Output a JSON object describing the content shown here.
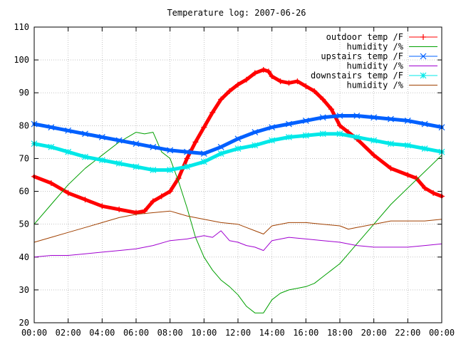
{
  "chart_data": {
    "type": "line",
    "title": "Temperature log: 2007-06-26",
    "xlabel": "",
    "ylabel": "",
    "xlim": [
      0,
      24
    ],
    "ylim": [
      20,
      110
    ],
    "x_ticks": [
      {
        "v": 0,
        "label": "00:00"
      },
      {
        "v": 2,
        "label": "02:00"
      },
      {
        "v": 4,
        "label": "04:00"
      },
      {
        "v": 6,
        "label": "06:00"
      },
      {
        "v": 8,
        "label": "08:00"
      },
      {
        "v": 10,
        "label": "10:00"
      },
      {
        "v": 12,
        "label": "12:00"
      },
      {
        "v": 14,
        "label": "14:00"
      },
      {
        "v": 16,
        "label": "16:00"
      },
      {
        "v": 18,
        "label": "18:00"
      },
      {
        "v": 20,
        "label": "20:00"
      },
      {
        "v": 22,
        "label": "22:00"
      },
      {
        "v": 24,
        "label": "00:00"
      }
    ],
    "y_ticks": [
      20,
      30,
      40,
      50,
      60,
      70,
      80,
      90,
      100,
      110
    ],
    "grid": true,
    "legend_position": "top-right",
    "series": [
      {
        "name": "outdoor temp /F",
        "color": "#ff0000",
        "marker": "plus",
        "thick": true,
        "x": [
          0,
          1,
          2,
          3,
          4,
          5,
          6,
          6.5,
          7,
          7.5,
          8,
          8.5,
          9,
          9.5,
          10,
          10.5,
          11,
          11.5,
          12,
          12.5,
          13,
          13.5,
          13.8,
          14,
          14.5,
          15,
          15.5,
          16,
          16.5,
          17,
          17.5,
          18,
          18.5,
          19,
          20,
          21,
          22,
          22.5,
          23,
          23.5,
          24
        ],
        "values": [
          64.5,
          62.5,
          59.5,
          57.5,
          55.5,
          54.5,
          53.5,
          54,
          57,
          58.5,
          60,
          64,
          70,
          75,
          79.5,
          84,
          88,
          90.5,
          92.5,
          94,
          96,
          97,
          96.5,
          95,
          93.5,
          93,
          93.5,
          92,
          90.5,
          88,
          85,
          80,
          78,
          76,
          71,
          67,
          65,
          64,
          61,
          59.5,
          58.5
        ]
      },
      {
        "name": "humidity /%",
        "color": "#00a000",
        "marker": "none",
        "thick": false,
        "x": [
          0,
          1,
          2,
          3,
          4,
          5,
          6,
          6.5,
          7,
          7.5,
          8,
          8.5,
          9,
          9.5,
          10,
          10.5,
          11,
          11.5,
          12,
          12.5,
          13,
          13.5,
          14,
          14.5,
          15,
          15.5,
          16,
          16.5,
          17,
          17.5,
          18,
          18.5,
          19,
          20,
          21,
          22,
          23,
          24
        ],
        "values": [
          50,
          56,
          62,
          67,
          71,
          75,
          78,
          77.5,
          78,
          72,
          70,
          63,
          55,
          46,
          40,
          36,
          33,
          31,
          28.5,
          25,
          23,
          23,
          27,
          29,
          30,
          30.5,
          31,
          32,
          34,
          36,
          38,
          41,
          44,
          50,
          56,
          61,
          66,
          71
        ]
      },
      {
        "name": "upstairs temp /F",
        "color": "#0060ff",
        "marker": "x",
        "thick": true,
        "x": [
          0,
          1,
          2,
          3,
          4,
          5,
          6,
          7,
          8,
          9,
          10,
          11,
          12,
          13,
          14,
          15,
          16,
          17,
          18,
          19,
          20,
          21,
          22,
          23,
          24
        ],
        "values": [
          80.5,
          79.5,
          78.5,
          77.5,
          76.5,
          75.5,
          74.5,
          73.5,
          72.5,
          72,
          71.5,
          73.5,
          76,
          78,
          79.5,
          80.5,
          81.5,
          82.5,
          83,
          83,
          82.5,
          82,
          81.5,
          80.5,
          79.5
        ]
      },
      {
        "name": "humidity /%",
        "color": "#a000d0",
        "marker": "none",
        "thick": false,
        "x": [
          0,
          1,
          2,
          3,
          4,
          5,
          6,
          7,
          8,
          9,
          10,
          10.5,
          11,
          11.5,
          12,
          12.5,
          13,
          13.5,
          14,
          15,
          16,
          17,
          18,
          19,
          20,
          21,
          22,
          23,
          24
        ],
        "values": [
          40,
          40.5,
          40.5,
          41,
          41.5,
          42,
          42.5,
          43.5,
          45,
          45.5,
          46.5,
          46,
          48,
          45,
          44.5,
          43.5,
          43,
          42,
          45,
          46,
          45.5,
          45,
          44.5,
          43.5,
          43,
          43,
          43,
          43.5,
          44
        ]
      },
      {
        "name": "downstairs temp /F",
        "color": "#00e8e8",
        "marker": "star",
        "thick": true,
        "x": [
          0,
          1,
          2,
          3,
          4,
          5,
          6,
          7,
          8,
          9,
          10,
          11,
          12,
          13,
          14,
          15,
          16,
          17,
          18,
          19,
          20,
          21,
          22,
          23,
          24
        ],
        "values": [
          74.5,
          73.5,
          72,
          70.5,
          69.5,
          68.5,
          67.5,
          66.5,
          66.5,
          67.5,
          69,
          71.5,
          73,
          74,
          75.5,
          76.5,
          77,
          77.5,
          77.5,
          76.5,
          75.5,
          74.5,
          74,
          73,
          72
        ]
      },
      {
        "name": "humidity /%",
        "color": "#a04000",
        "marker": "none",
        "thick": false,
        "x": [
          0,
          1,
          2,
          3,
          4,
          5,
          6,
          7,
          8,
          9,
          10,
          11,
          12,
          12.5,
          13,
          13.5,
          14,
          15,
          16,
          17,
          18,
          18.5,
          19,
          20,
          21,
          22,
          23,
          24
        ],
        "values": [
          44.5,
          46,
          47.5,
          49,
          50.5,
          52,
          53,
          53.5,
          54,
          52.5,
          51.5,
          50.5,
          50,
          49,
          48,
          47,
          49.5,
          50.5,
          50.5,
          50,
          49.5,
          48.5,
          49,
          50,
          51,
          51,
          51,
          51.5
        ]
      }
    ]
  }
}
